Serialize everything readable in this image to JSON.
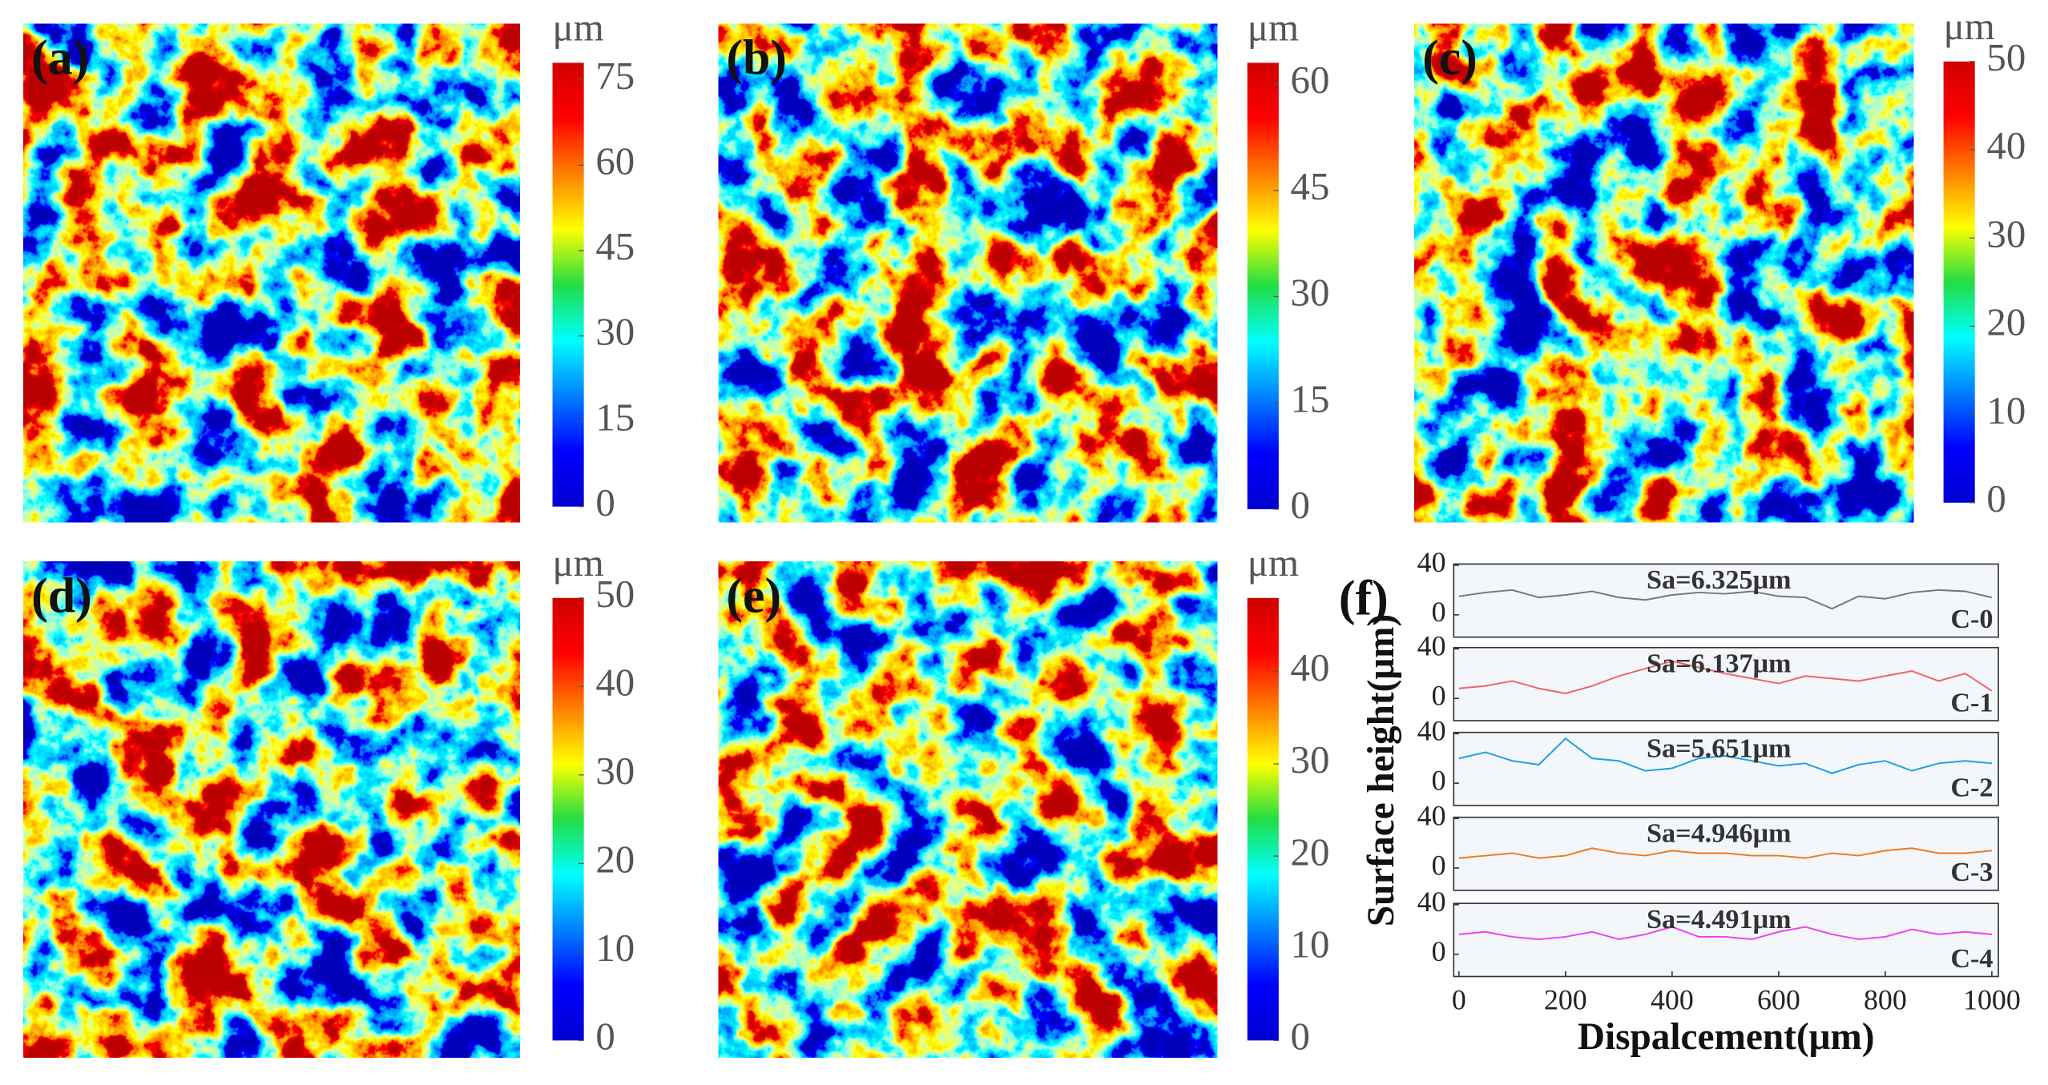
{
  "chart_data": [
    {
      "type": "heatmap",
      "label": "(a)",
      "colormap": "jet",
      "unit": "μm",
      "clim": [
        0,
        78
      ],
      "cticks": [
        0,
        15,
        30,
        45,
        60,
        75
      ]
    },
    {
      "type": "heatmap",
      "label": "(b)",
      "colormap": "jet",
      "unit": "μm",
      "clim": [
        0,
        63
      ],
      "cticks": [
        0,
        15,
        30,
        45,
        60
      ]
    },
    {
      "type": "heatmap",
      "label": "(c)",
      "colormap": "jet",
      "unit": "μm",
      "clim": [
        0,
        50
      ],
      "cticks": [
        0,
        10,
        20,
        30,
        40,
        50
      ]
    },
    {
      "type": "heatmap",
      "label": "(d)",
      "colormap": "jet",
      "unit": "μm",
      "clim": [
        0,
        50
      ],
      "cticks": [
        0,
        10,
        20,
        30,
        40,
        50
      ]
    },
    {
      "type": "heatmap",
      "label": "(e)",
      "colormap": "jet",
      "unit": "μm",
      "clim": [
        0,
        48
      ],
      "cticks": [
        0,
        10,
        20,
        30,
        40
      ]
    },
    {
      "type": "line",
      "label": "(f)",
      "xlabel": "Dispalcement(μm)",
      "ylabel": "Surface height(μm)",
      "x": [
        0,
        50,
        100,
        150,
        200,
        250,
        300,
        350,
        400,
        450,
        500,
        550,
        600,
        650,
        700,
        750,
        800,
        850,
        900,
        950,
        1000
      ],
      "xlim": [
        0,
        1000
      ],
      "xticks": [
        0,
        200,
        400,
        600,
        800,
        1000
      ],
      "ylim": [
        -18,
        41
      ],
      "yticks": [
        0,
        40
      ],
      "series": [
        {
          "name": "C-0",
          "color": "#777777",
          "annotation": "Sa=6.325μm",
          "annotation_color": "#111111",
          "values": [
            15,
            18,
            20,
            14,
            16,
            19,
            14,
            12,
            16,
            18,
            17,
            19,
            15,
            14,
            5,
            15,
            13,
            18,
            20,
            19,
            14
          ]
        },
        {
          "name": "C-1",
          "color": "#f06464",
          "annotation": "Sa=6.137μm",
          "annotation_color": "#f06464",
          "values": [
            8,
            10,
            14,
            8,
            4,
            10,
            18,
            24,
            30,
            25,
            20,
            16,
            12,
            18,
            16,
            14,
            18,
            22,
            14,
            20,
            6
          ]
        },
        {
          "name": "C-2",
          "color": "#1aa0e0",
          "annotation": "Sa=5.651μm",
          "annotation_color": "#1aa0e0",
          "values": [
            20,
            25,
            18,
            15,
            36,
            20,
            18,
            10,
            12,
            20,
            22,
            18,
            14,
            16,
            8,
            15,
            18,
            10,
            16,
            18,
            16
          ]
        },
        {
          "name": "C-3",
          "color": "#f07a1a",
          "annotation": "Sa=4.946μm",
          "annotation_color": "#f07a1a",
          "values": [
            8,
            10,
            12,
            8,
            10,
            16,
            12,
            10,
            14,
            12,
            12,
            10,
            10,
            8,
            12,
            10,
            14,
            16,
            12,
            12,
            14
          ]
        },
        {
          "name": "C-4",
          "color": "#f040f0",
          "annotation": "Sa=4.491μm",
          "annotation_color": "#e020e0",
          "values": [
            16,
            18,
            14,
            12,
            14,
            18,
            12,
            16,
            22,
            14,
            14,
            12,
            18,
            22,
            16,
            12,
            14,
            20,
            16,
            18,
            16
          ]
        }
      ]
    }
  ]
}
